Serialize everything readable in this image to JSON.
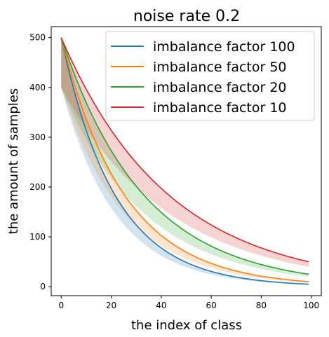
{
  "chart_data": {
    "type": "line",
    "title": "noise rate 0.2",
    "xlabel": "the index of class",
    "ylabel": "the amount of samples",
    "xlim": [
      -4,
      104
    ],
    "ylim": [
      -18,
      522
    ],
    "xticks": [
      0,
      20,
      40,
      60,
      80,
      100
    ],
    "yticks": [
      0,
      100,
      200,
      300,
      400,
      500
    ],
    "grid": false,
    "legend_position": "top-right",
    "n_classes": 100,
    "max_samples": 500,
    "noise_rate": 0.2,
    "band": "shaded region from (1 - noise rate) x curve to the curve",
    "series": [
      {
        "name": "imbalance factor 100",
        "imbalance_factor": 100,
        "color": "#1f77b4"
      },
      {
        "name": "imbalance factor 50",
        "imbalance_factor": 50,
        "color": "#ff7f0e"
      },
      {
        "name": "imbalance factor 20",
        "imbalance_factor": 20,
        "color": "#2ca02c"
      },
      {
        "name": "imbalance factor 10",
        "imbalance_factor": 10,
        "color": "#d62728"
      }
    ]
  }
}
